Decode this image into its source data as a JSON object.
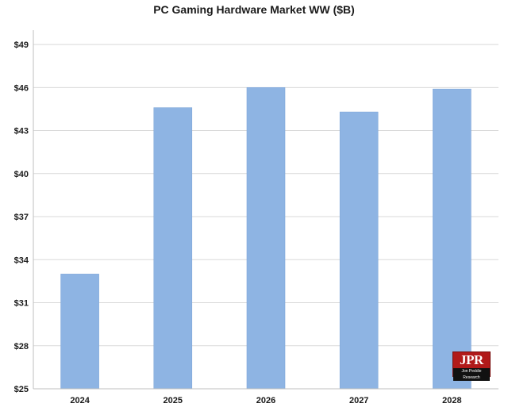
{
  "chart_data": {
    "type": "bar",
    "title": "PC Gaming  Hardware Market WW ($B)",
    "xlabel": "",
    "ylabel": "",
    "categories": [
      "2024",
      "2025",
      "2026",
      "2027",
      "2028"
    ],
    "values": [
      33.0,
      44.6,
      46.0,
      44.3,
      45.9
    ],
    "ylim": [
      25,
      50
    ],
    "yticks": [
      25,
      28,
      31,
      34,
      37,
      40,
      43,
      46,
      49
    ],
    "ytick_labels": [
      "$25",
      "$28",
      "$31",
      "$34",
      "$37",
      "$40",
      "$43",
      "$46",
      "$49"
    ],
    "grid": true,
    "legend": "none",
    "colors": {
      "bar": "#8eb4e3",
      "bar_edge": "#7aa3d6",
      "grid": "#d9d9d9",
      "axis": "#bfbfbf"
    }
  },
  "logo": {
    "mark": "JPR",
    "subtitle": "Jon Peddie Research"
  }
}
